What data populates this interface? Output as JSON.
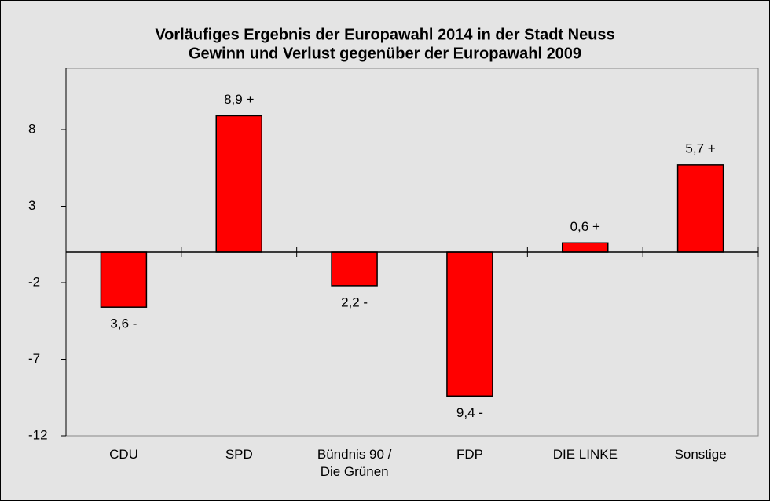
{
  "chart_data": {
    "type": "bar",
    "title": "Vorläufiges Ergebnis der Europawahl 2014 in der Stadt Neuss",
    "subtitle": "Gewinn und Verlust gegenüber der Europawahl 2009",
    "categories": [
      "CDU",
      "SPD",
      "Bündnis 90 /\nDie Grünen",
      "FDP",
      "DIE LINKE",
      "Sonstige"
    ],
    "values": [
      -3.6,
      8.9,
      -2.2,
      -9.4,
      0.6,
      5.7
    ],
    "value_labels": [
      "3,6 -",
      "8,9 +",
      "2,2 -",
      "9,4 -",
      "0,6 +",
      "5,7 +"
    ],
    "color": "#ff0000",
    "ylim": [
      -12,
      12
    ],
    "yticks": [
      -12,
      -7,
      -2,
      3,
      8
    ],
    "grid": false
  }
}
